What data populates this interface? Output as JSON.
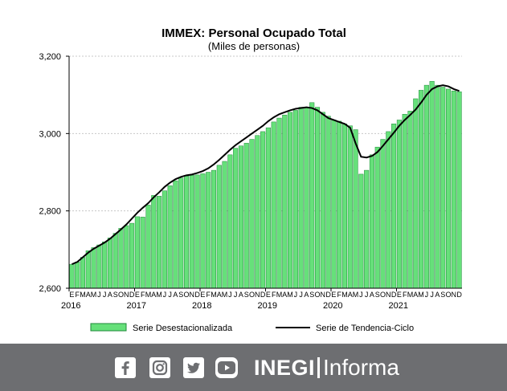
{
  "chart_data": {
    "type": "bar",
    "title": "IMMEX: Personal Ocupado Total",
    "subtitle": "(Miles de personas)",
    "ylim": [
      2600,
      3200
    ],
    "y_ticks": [
      "2,600",
      "2,800",
      "3,000",
      "3,200"
    ],
    "y_tick_values": [
      2600,
      2800,
      3000,
      3200
    ],
    "grid": true,
    "month_labels": [
      "E",
      "F",
      "M",
      "A",
      "M",
      "J",
      "J",
      "A",
      "S",
      "O",
      "N",
      "D"
    ],
    "years": [
      "2016",
      "2017",
      "2018",
      "2019",
      "2020",
      "2021"
    ],
    "x_range": "2016-01 to 2021-12",
    "legend_position": "bottom",
    "series": [
      {
        "name": "Serie Desestacionalizada",
        "type": "bar",
        "color": "#66e07a",
        "values": [
          2662,
          2668,
          2680,
          2697,
          2705,
          2712,
          2720,
          2730,
          2742,
          2755,
          2762,
          2768,
          2785,
          2784,
          2815,
          2840,
          2838,
          2852,
          2865,
          2878,
          2885,
          2890,
          2892,
          2893,
          2896,
          2900,
          2905,
          2918,
          2928,
          2945,
          2962,
          2968,
          2975,
          2985,
          2995,
          3005,
          3015,
          3030,
          3040,
          3048,
          3055,
          3060,
          3068,
          3068,
          3080,
          3068,
          3055,
          3045,
          3035,
          3032,
          3025,
          3020,
          3010,
          2895,
          2905,
          2945,
          2965,
          2985,
          3005,
          3025,
          3035,
          3050,
          3058,
          3090,
          3112,
          3125,
          3135,
          3125,
          3120,
          3115,
          3110,
          3108
        ]
      },
      {
        "name": "Serie de Tendencia-Ciclo",
        "type": "line",
        "color": "#000000",
        "values": [
          2662,
          2668,
          2680,
          2692,
          2702,
          2710,
          2718,
          2728,
          2740,
          2752,
          2765,
          2780,
          2795,
          2808,
          2820,
          2835,
          2848,
          2862,
          2873,
          2882,
          2888,
          2892,
          2894,
          2898,
          2903,
          2910,
          2920,
          2932,
          2945,
          2958,
          2970,
          2980,
          2990,
          3000,
          3010,
          3020,
          3032,
          3042,
          3050,
          3055,
          3060,
          3064,
          3066,
          3068,
          3066,
          3060,
          3050,
          3040,
          3035,
          3030,
          3025,
          3015,
          2975,
          2940,
          2938,
          2942,
          2952,
          2968,
          2985,
          3002,
          3020,
          3035,
          3048,
          3062,
          3080,
          3100,
          3115,
          3122,
          3125,
          3122,
          3115,
          3110
        ]
      }
    ]
  },
  "colors": {
    "bar_fill": "#66e07a",
    "bar_stroke": "#1f8a3a",
    "trend": "#000000",
    "footer": "#6d6e71"
  },
  "footer": {
    "icons": [
      "facebook-icon",
      "instagram-icon",
      "twitter-icon",
      "youtube-icon"
    ],
    "brand_inegi": "INEGI",
    "brand_informa": "Informa"
  }
}
